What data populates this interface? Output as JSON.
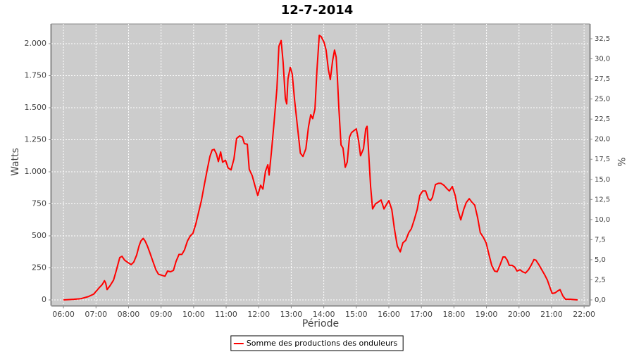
{
  "chart_data": {
    "type": "line",
    "title": "12-7-2014",
    "x_label": "Période",
    "y_label": "Watts",
    "y2_label": "%",
    "grid": true,
    "legend": "bottom",
    "xlim": [
      5.63,
      22.17
    ],
    "xticks": [
      {
        "value": 6,
        "label": "06:00"
      },
      {
        "value": 7,
        "label": "07:00"
      },
      {
        "value": 8,
        "label": "08:00"
      },
      {
        "value": 9,
        "label": "09:00"
      },
      {
        "value": 10,
        "label": "10:00"
      },
      {
        "value": 11,
        "label": "11:00"
      },
      {
        "value": 12,
        "label": "12:00"
      },
      {
        "value": 13,
        "label": "13:00"
      },
      {
        "value": 14,
        "label": "14:00"
      },
      {
        "value": 15,
        "label": "15:00"
      },
      {
        "value": 16,
        "label": "16:00"
      },
      {
        "value": 17,
        "label": "17:00"
      },
      {
        "value": 18,
        "label": "18:00"
      },
      {
        "value": 19,
        "label": "19:00"
      },
      {
        "value": 20,
        "label": "20:00"
      },
      {
        "value": 21,
        "label": "21:00"
      },
      {
        "value": 22,
        "label": "22:00"
      }
    ],
    "ylim": [
      -44,
      2154
    ],
    "yticks": [
      0,
      250,
      500,
      750,
      {
        "value": 1000,
        "label": "1.000"
      },
      {
        "value": 1250,
        "label": "1.250"
      },
      {
        "value": 1500,
        "label": "1.500"
      },
      {
        "value": 1750,
        "label": "1.750"
      },
      {
        "value": 2000,
        "label": "2.000"
      }
    ],
    "y2lim": [
      -0.7,
      34.34
    ],
    "y2ticks": [
      {
        "value": 0,
        "label": "0,0"
      },
      {
        "value": 2.5,
        "label": "2,5"
      },
      {
        "value": 5,
        "label": "5,0"
      },
      {
        "value": 7.5,
        "label": "7,5"
      },
      {
        "value": 10,
        "label": "10,0"
      },
      {
        "value": 12.5,
        "label": "12,5"
      },
      {
        "value": 15,
        "label": "15,0"
      },
      {
        "value": 17.5,
        "label": "17,5"
      },
      {
        "value": 20,
        "label": "20,0"
      },
      {
        "value": 22.5,
        "label": "22,5"
      },
      {
        "value": 25,
        "label": "25,0"
      },
      {
        "value": 27.5,
        "label": "27,5"
      },
      {
        "value": 30,
        "label": "30,0"
      },
      {
        "value": 32.5,
        "label": "32,5"
      }
    ],
    "x": [
      6.0,
      6.32,
      6.54,
      6.76,
      6.93,
      7.08,
      7.19,
      7.26,
      7.3,
      7.34,
      7.43,
      7.54,
      7.62,
      7.73,
      7.8,
      7.88,
      7.99,
      8.08,
      8.16,
      8.25,
      8.32,
      8.38,
      8.45,
      8.51,
      8.58,
      8.66,
      8.75,
      8.84,
      8.92,
      9.05,
      9.12,
      9.2,
      9.29,
      9.38,
      9.46,
      9.55,
      9.64,
      9.72,
      9.81,
      9.9,
      9.98,
      10.07,
      10.16,
      10.24,
      10.33,
      10.42,
      10.5,
      10.57,
      10.63,
      10.7,
      10.76,
      10.83,
      10.89,
      10.98,
      11.06,
      11.15,
      11.24,
      11.32,
      11.41,
      11.5,
      11.56,
      11.65,
      11.71,
      11.8,
      11.89,
      11.97,
      12.06,
      12.13,
      12.21,
      12.28,
      12.32,
      12.39,
      12.47,
      12.56,
      12.62,
      12.69,
      12.75,
      12.82,
      12.86,
      12.9,
      12.97,
      13.03,
      13.1,
      13.19,
      13.28,
      13.36,
      13.45,
      13.53,
      13.6,
      13.66,
      13.73,
      13.79,
      13.86,
      13.92,
      14.01,
      14.07,
      14.14,
      14.2,
      14.27,
      14.33,
      14.38,
      14.42,
      14.46,
      14.53,
      14.59,
      14.66,
      14.72,
      14.79,
      14.85,
      14.92,
      15.0,
      15.07,
      15.13,
      15.22,
      15.29,
      15.33,
      15.37,
      15.44,
      15.5,
      15.59,
      15.68,
      15.76,
      15.85,
      15.94,
      16.0,
      16.09,
      16.17,
      16.26,
      16.35,
      16.43,
      16.52,
      16.61,
      16.69,
      16.78,
      16.87,
      16.95,
      17.04,
      17.13,
      17.21,
      17.28,
      17.34,
      17.43,
      17.52,
      17.6,
      17.69,
      17.78,
      17.86,
      17.95,
      18.04,
      18.12,
      18.21,
      18.3,
      18.38,
      18.47,
      18.56,
      18.64,
      18.73,
      18.81,
      18.9,
      18.99,
      19.08,
      19.16,
      19.25,
      19.33,
      19.42,
      19.51,
      19.57,
      19.64,
      19.7,
      19.79,
      19.87,
      19.94,
      20.03,
      20.11,
      20.2,
      20.29,
      20.37,
      20.46,
      20.52,
      20.61,
      20.7,
      20.78,
      20.87,
      20.96,
      21.02,
      21.11,
      21.19,
      21.26,
      21.35,
      21.43,
      21.58,
      21.8
    ],
    "series": [
      {
        "name": "Somme des productions des onduleurs",
        "color": "#ff0000",
        "values": [
          0,
          5,
          10,
          25,
          45,
          90,
          120,
          150,
          130,
          80,
          110,
          155,
          225,
          330,
          340,
          310,
          290,
          275,
          295,
          350,
          420,
          460,
          480,
          460,
          420,
          365,
          300,
          235,
          200,
          190,
          185,
          225,
          220,
          230,
          300,
          355,
          355,
          390,
          460,
          500,
          520,
          595,
          690,
          775,
          900,
          1020,
          1120,
          1170,
          1175,
          1140,
          1080,
          1155,
          1075,
          1090,
          1030,
          1015,
          1100,
          1260,
          1280,
          1270,
          1220,
          1215,
          1020,
          970,
          885,
          815,
          895,
          865,
          1005,
          1055,
          975,
          1155,
          1375,
          1650,
          1980,
          2025,
          1855,
          1570,
          1530,
          1725,
          1815,
          1765,
          1570,
          1355,
          1145,
          1120,
          1180,
          1350,
          1445,
          1415,
          1490,
          1790,
          2065,
          2055,
          2010,
          1950,
          1800,
          1720,
          1865,
          1950,
          1895,
          1730,
          1510,
          1210,
          1185,
          1035,
          1075,
          1270,
          1305,
          1320,
          1335,
          1245,
          1125,
          1180,
          1335,
          1355,
          1190,
          885,
          710,
          750,
          765,
          780,
          710,
          750,
          775,
          705,
          555,
          420,
          375,
          445,
          465,
          525,
          555,
          625,
          705,
          815,
          850,
          850,
          790,
          775,
          800,
          900,
          910,
          910,
          895,
          870,
          850,
          885,
          815,
          705,
          625,
          705,
          760,
          790,
          760,
          740,
          640,
          525,
          490,
          445,
          350,
          270,
          225,
          220,
          275,
          335,
          335,
          310,
          270,
          270,
          255,
          225,
          235,
          220,
          210,
          235,
          270,
          315,
          310,
          275,
          235,
          200,
          155,
          90,
          50,
          55,
          70,
          80,
          30,
          5,
          5,
          0
        ]
      }
    ]
  }
}
